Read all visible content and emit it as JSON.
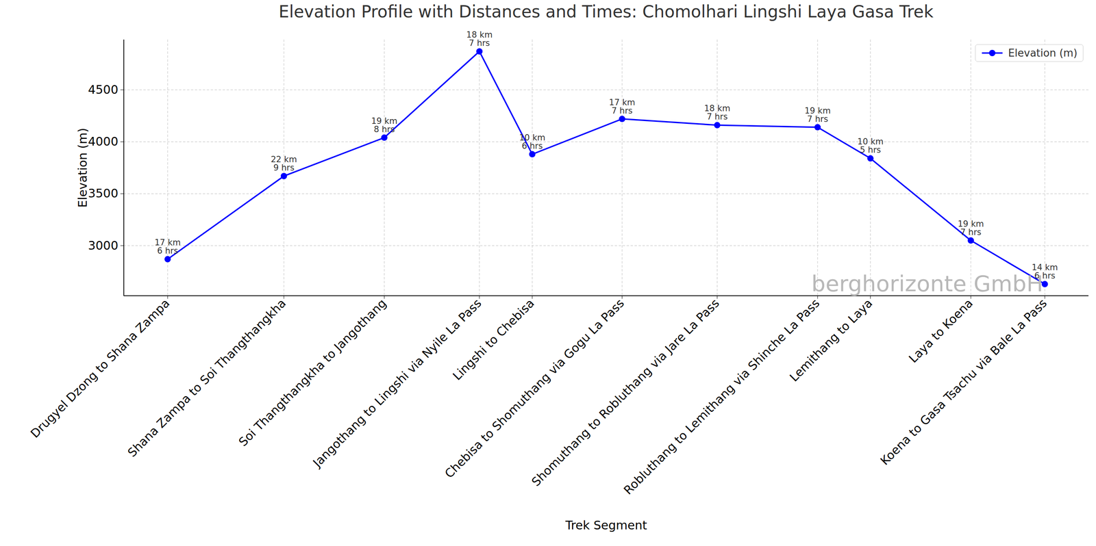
{
  "chart_data": {
    "type": "line",
    "title": "Elevation Profile with Distances and Times: Chomolhari Lingshi Laya Gasa Trek",
    "x_label": "Trek Segment",
    "y_label": "Elevation (m)",
    "x": [
      17,
      39,
      58,
      76,
      86,
      103,
      121,
      140,
      150,
      169,
      183
    ],
    "series": [
      {
        "name": "Elevation (m)",
        "color": "#0000ff",
        "marker": "o",
        "line_style": "solid",
        "values": [
          2870,
          3670,
          4040,
          4870,
          3880,
          4220,
          4160,
          4140,
          3840,
          3050,
          2630
        ]
      }
    ],
    "point_labels": [
      [
        "17 km",
        "6 hrs"
      ],
      [
        "22 km",
        "9 hrs"
      ],
      [
        "19 km",
        "8 hrs"
      ],
      [
        "18 km",
        "7 hrs"
      ],
      [
        "10 km",
        "6 hrs"
      ],
      [
        "17 km",
        "7 hrs"
      ],
      [
        "18 km",
        "7 hrs"
      ],
      [
        "19 km",
        "7 hrs"
      ],
      [
        "10 km",
        "5 hrs"
      ],
      [
        "19 km",
        "7 hrs"
      ],
      [
        "14 km",
        "6 hrs"
      ]
    ],
    "xlim": [
      8.7,
      191.3
    ],
    "xticks": [
      {
        "value": 17,
        "label": "Drugyel Dzong to Shana Zampa"
      },
      {
        "value": 39,
        "label": "Shana Zampa to Soi Thangthangkha"
      },
      {
        "value": 58,
        "label": "Soi Thangthangkha to Jangothang"
      },
      {
        "value": 76,
        "label": "Jangothang to Lingshi via Nyile La Pass"
      },
      {
        "value": 86,
        "label": "Lingshi to Chebisa"
      },
      {
        "value": 103,
        "label": "Chebisa to Shomuthang via Gogu La Pass"
      },
      {
        "value": 121,
        "label": "Shomuthang to Robluthang via Jare La Pass"
      },
      {
        "value": 140,
        "label": "Robluthang to Lemithang via Shinche La Pass"
      },
      {
        "value": 150,
        "label": "Lemithang to Laya"
      },
      {
        "value": 169,
        "label": "Laya to Koena"
      },
      {
        "value": 183,
        "label": "Koena to Gasa Tsachu via Bale La Pass"
      }
    ],
    "ylim": [
      2518,
      4982
    ],
    "yticks": [
      3000,
      3500,
      4000,
      4500
    ],
    "grid": true,
    "legend": "upper right",
    "annotations": [
      {
        "text": "berghorizonte GmbH"
      }
    ]
  }
}
